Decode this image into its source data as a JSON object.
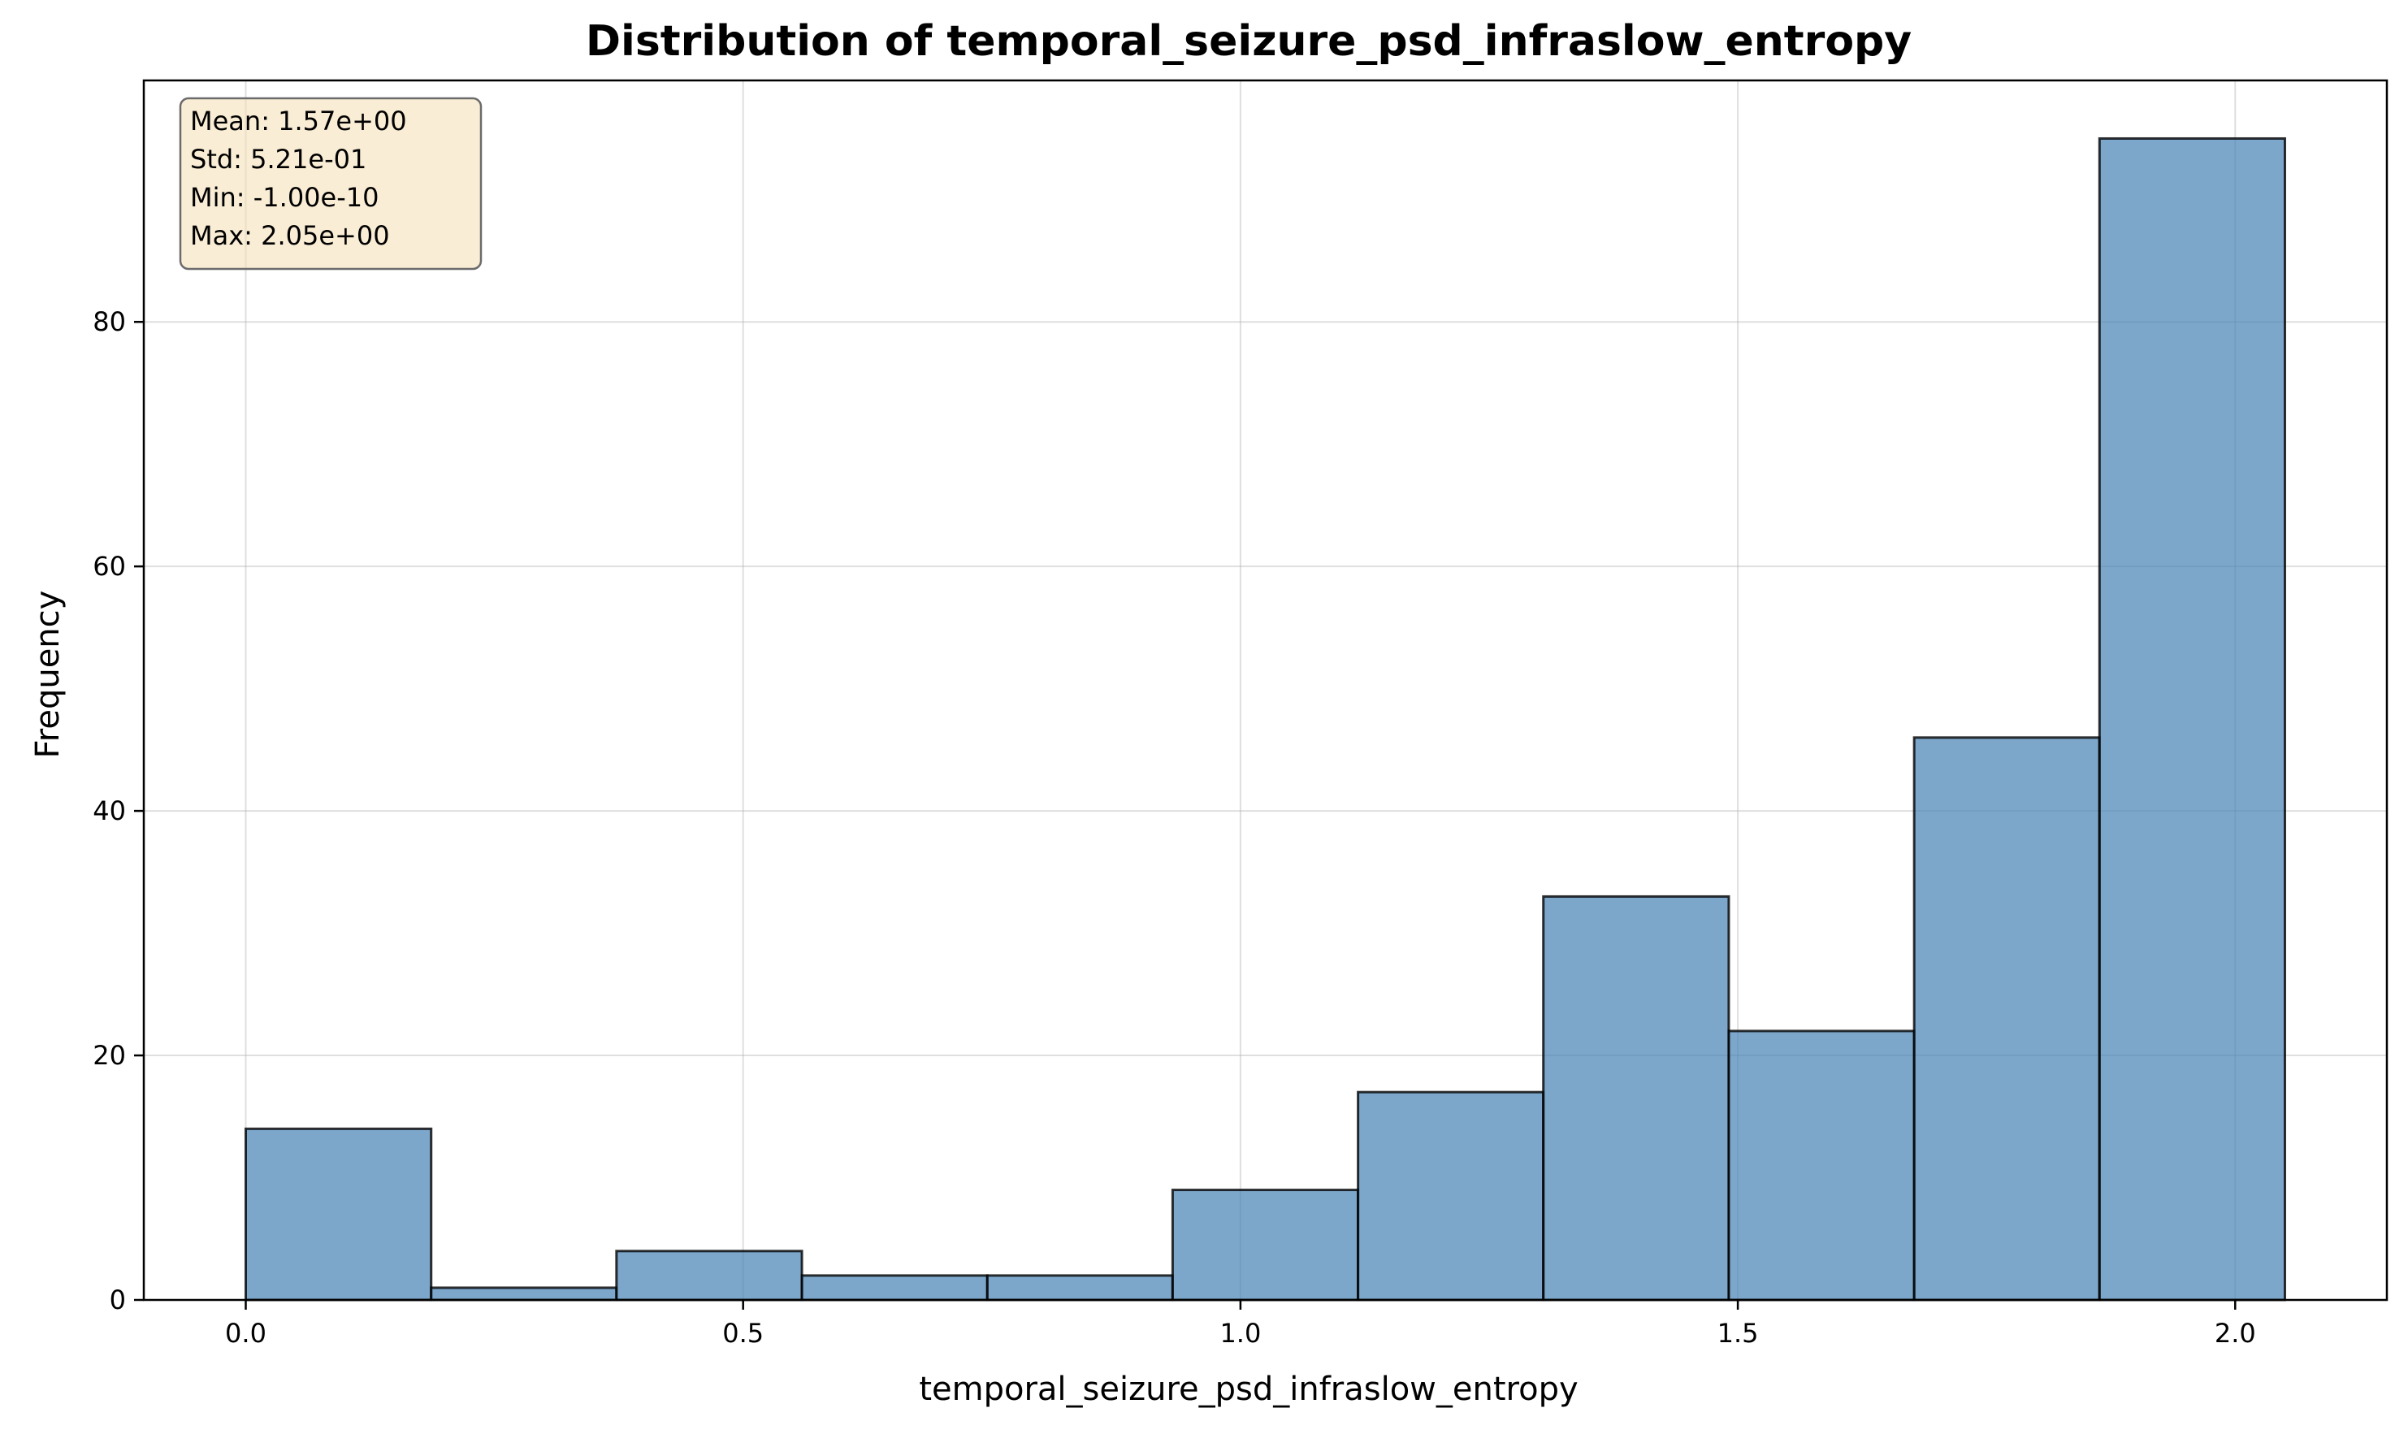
{
  "chart_data": {
    "type": "bar",
    "title": "Distribution of temporal_seizure_psd_infraslow_entropy",
    "xlabel": "temporal_seizure_psd_infraslow_entropy",
    "ylabel": "Frequency",
    "xlim": [
      -0.1025,
      2.1525
    ],
    "ylim": [
      0,
      99.75
    ],
    "bin_edges": [
      0.0,
      0.1864,
      0.3727,
      0.5591,
      0.7455,
      0.9318,
      1.1182,
      1.3045,
      1.4909,
      1.6773,
      1.8636,
      2.05
    ],
    "values": [
      14,
      1,
      4,
      2,
      2,
      9,
      17,
      33,
      22,
      46,
      95
    ],
    "x_ticks": [
      0.0,
      0.5,
      1.0,
      1.5,
      2.0
    ],
    "x_tick_labels": [
      "0.0",
      "0.5",
      "1.0",
      "1.5",
      "2.0"
    ],
    "y_ticks": [
      0,
      20,
      40,
      60,
      80
    ],
    "y_tick_labels": [
      "0",
      "20",
      "40",
      "60",
      "80"
    ],
    "grid": true,
    "bar_color": "#4682b4",
    "bar_edge_color": "#000000",
    "stats_box": {
      "lines": [
        "Mean: 1.57e+00",
        "Std: 5.21e-01",
        "Min: -1.00e-10",
        "Max: 2.05e+00"
      ],
      "placement": "top-left",
      "background": "#f5deb3"
    }
  }
}
